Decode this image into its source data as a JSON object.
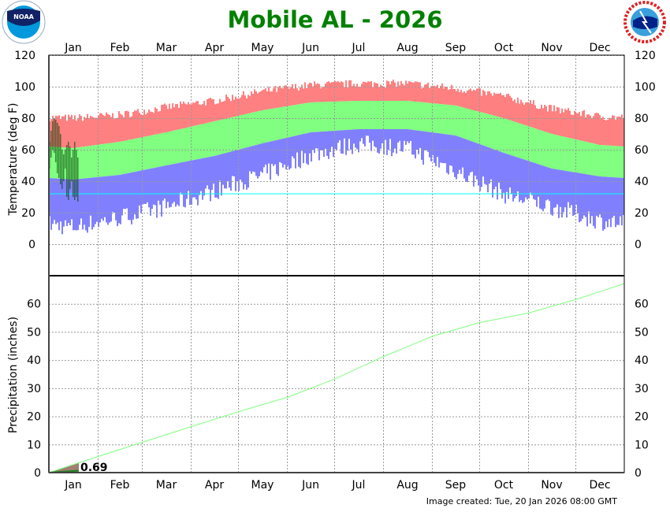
{
  "title": "Mobile AL - 2026",
  "footer": "Image created: Tue, 20 Jan 2026 08:00 GMT",
  "logos": {
    "left": "NOAA",
    "right": "NATIONAL WEATHER SERVICE"
  },
  "colors": {
    "record_high": "#ff8080",
    "normal": "#80ff80",
    "record_low": "#8080ff",
    "observed": "#004000",
    "freezing": "#00ffff",
    "precip_normal": "#80ff80",
    "precip_observed_fill": "#a08070",
    "title": "#008000"
  },
  "chart_data": [
    {
      "type": "bar",
      "ylabel": "Temperature (deg F)",
      "ylim": [
        -20,
        120
      ],
      "yticks": [
        0,
        20,
        40,
        60,
        80,
        100,
        120
      ],
      "months": [
        "Jan",
        "Feb",
        "Mar",
        "Apr",
        "May",
        "Jun",
        "Jul",
        "Aug",
        "Sep",
        "Oct",
        "Nov",
        "Dec"
      ],
      "grid": true,
      "freezing_line": 32,
      "monthly_normal_high": [
        61,
        65,
        71,
        78,
        85,
        90,
        91,
        91,
        88,
        80,
        70,
        63
      ],
      "monthly_normal_low": [
        41,
        44,
        50,
        56,
        64,
        71,
        73,
        73,
        69,
        58,
        48,
        43
      ],
      "monthly_record_high": [
        80,
        82,
        87,
        91,
        97,
        101,
        102,
        102,
        99,
        94,
        86,
        81
      ],
      "monthly_record_low": [
        12,
        18,
        25,
        35,
        45,
        58,
        65,
        62,
        48,
        33,
        25,
        16
      ],
      "observed_high": [
        65,
        72,
        78,
        80,
        79,
        77,
        75,
        70,
        60,
        57,
        60,
        63,
        65,
        62,
        55,
        60,
        65,
        60,
        55
      ],
      "observed_low": [
        48,
        55,
        60,
        58,
        52,
        45,
        42,
        38,
        35,
        40,
        48,
        30,
        28,
        35,
        40,
        30,
        28,
        30,
        27
      ]
    },
    {
      "type": "line",
      "ylabel": "Precipitation (inches)",
      "ylim": [
        0,
        70
      ],
      "yticks": [
        0,
        10,
        20,
        30,
        40,
        50,
        60
      ],
      "grid": true,
      "normal_cumulative_month_end": [
        5.7,
        10.7,
        16.3,
        21.6,
        26.7,
        33.2,
        41.2,
        48.4,
        53.3,
        56.7,
        61.5,
        67.2
      ],
      "observed_total": 0.69,
      "observed_total_label": "0.69",
      "observed_days": 19
    }
  ]
}
